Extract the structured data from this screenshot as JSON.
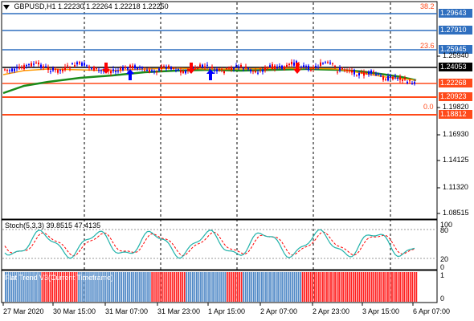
{
  "symbol_header": {
    "symbol": "GBPUSD,H1",
    "ohlc": "1.22230 1.22264 1.22218 1.22250"
  },
  "price_axis": {
    "ticks": [
      "1.25940",
      "1.19820",
      "1.16930",
      "1.14125",
      "1.11320",
      "1.08515"
    ],
    "tags": [
      {
        "label": "1.29643",
        "kind": "level",
        "color": "#2f6fbf"
      },
      {
        "label": "1.27910",
        "kind": "level",
        "color": "#2f6fbf"
      },
      {
        "label": "1.25945",
        "kind": "level",
        "color": "#2f6fbf"
      },
      {
        "label": "1.24053",
        "kind": "current",
        "color": "#000000"
      },
      {
        "label": "1.22268",
        "kind": "level",
        "color": "#ff4a1a"
      },
      {
        "label": "1.20923",
        "kind": "level",
        "color": "#ff4a1a"
      },
      {
        "label": "1.18812",
        "kind": "level",
        "color": "#ff4a1a"
      }
    ],
    "fib_labels": [
      "38.2",
      "23.6",
      "0.0"
    ]
  },
  "stochastic": {
    "title": "Stoch(5,3,3) 39.8515 47.4135",
    "levels": [
      "100",
      "80",
      "20",
      "0"
    ]
  },
  "flat_trend": {
    "title": "Flat Trend V3(Current Timeframe)",
    "levels": [
      "1",
      "0"
    ],
    "bars": "bbbbbbbbbbbbbbbbbbrrrrrrrrrrrrrrrrrrbbbbbbbbbbbbbbbbbbbbbbbbbbbbbbbbbbbbrrrrrrrrrrrrrrrrrbbbbbbbbbbbbbbbbbbbbrrrrrrrrbbbbbbbbbbbbbbbbbbbbbbbbbbbbbrrrrrrrrrrrrrrrrrrrrrrrrrrrrrrrrrrrrrrrrrrrrrrrrrrrrrrrrr"
  },
  "time_axis": {
    "labels": [
      "27 Mar 2020",
      "30 Mar 15:00",
      "31 Mar 07:00",
      "31 Mar 23:00",
      "1 Apr 15:00",
      "2 Apr 07:00",
      "2 Apr 23:00",
      "3 Apr 15:00",
      "6 Apr 07:00"
    ]
  },
  "colors": {
    "level_blue": "#2f6fbf",
    "level_red": "#ff4a1a",
    "ma_green": "#1a8c1a",
    "ma_orange": "#ff9900",
    "bull": "#0000ff",
    "bear": "#ff0000",
    "stoch_main": "#20b2aa",
    "stoch_signal": "#ff0000",
    "flat_blue": "#4f88c6",
    "flat_red": "#ff2020"
  }
}
